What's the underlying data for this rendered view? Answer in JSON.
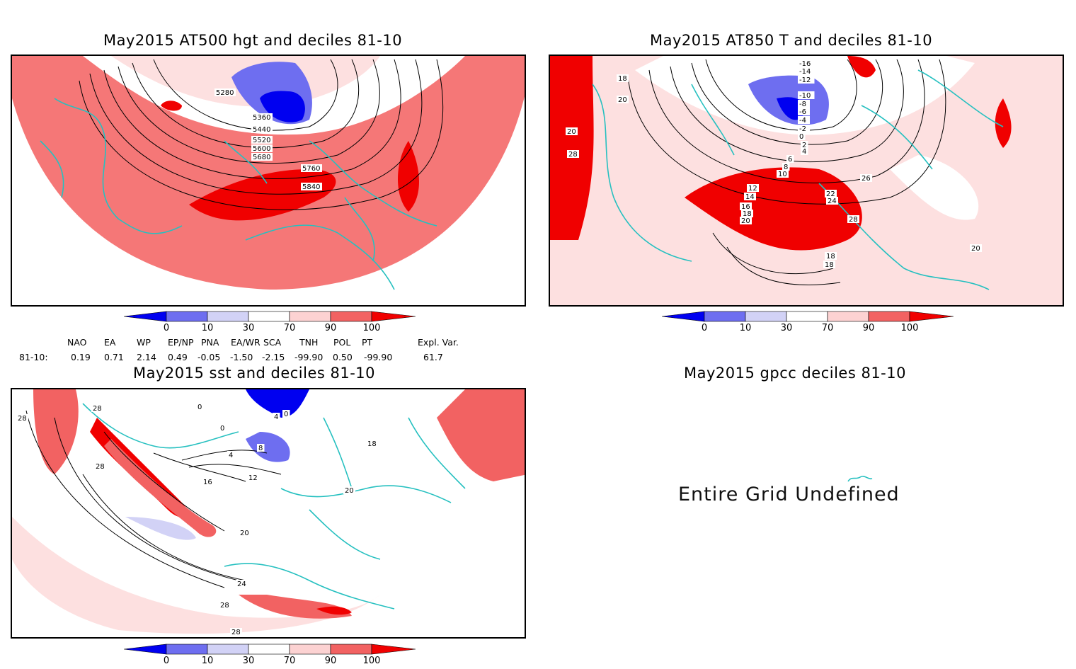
{
  "panels": [
    {
      "title": "May2015 AT500 hgt and deciles 81-10",
      "contour_labels": [
        "5280",
        "5360",
        "5440",
        "5520",
        "5600",
        "5680",
        "5760",
        "5840"
      ]
    },
    {
      "title": "May2015 AT850 T and deciles 81-10",
      "contour_labels": [
        "-16",
        "-14",
        "-12",
        "-10",
        "-8",
        "-6",
        "-4",
        "-2",
        "0",
        "2",
        "4",
        "6",
        "8",
        "10",
        "12",
        "14",
        "16",
        "18",
        "20",
        "22",
        "24",
        "26",
        "28",
        "18",
        "18",
        "20",
        "28",
        "18",
        "20",
        "20"
      ]
    },
    {
      "title": "May2015 sst and deciles 81-10",
      "contour_labels": [
        "28",
        "28",
        "0",
        "0",
        "4",
        "8",
        "12",
        "16",
        "20",
        "24",
        "28",
        "28",
        "18",
        "20",
        "28",
        "0",
        "4"
      ]
    },
    {
      "title": "May2015 gpcc deciles 81-10",
      "undefined_text": "Entire Grid Undefined"
    }
  ],
  "colorbar": {
    "labels": [
      "0",
      "10",
      "30",
      "70",
      "90",
      "100"
    ],
    "colors": [
      "#0000f0",
      "#6e6ef0",
      "#d2d2f6",
      "#ffffff",
      "#fcd2d2",
      "#f26262",
      "#f00000"
    ]
  },
  "indices": {
    "header": [
      "NAO",
      "EA",
      "WP",
      "EP/NP",
      "PNA",
      "EA/WR",
      "SCA",
      "TNH",
      "POL",
      "PT",
      "Expl. Var."
    ],
    "row_label": "81-10:",
    "values": [
      "0.19",
      "0.71",
      "2.14",
      "0.49",
      "-0.05",
      "-1.50",
      "-2.15",
      "-99.90",
      "0.50",
      "-99.90",
      "61.7"
    ]
  },
  "map_colors": {
    "coast": "#26c0c0",
    "grid": "#888888",
    "contour": "#000000"
  }
}
